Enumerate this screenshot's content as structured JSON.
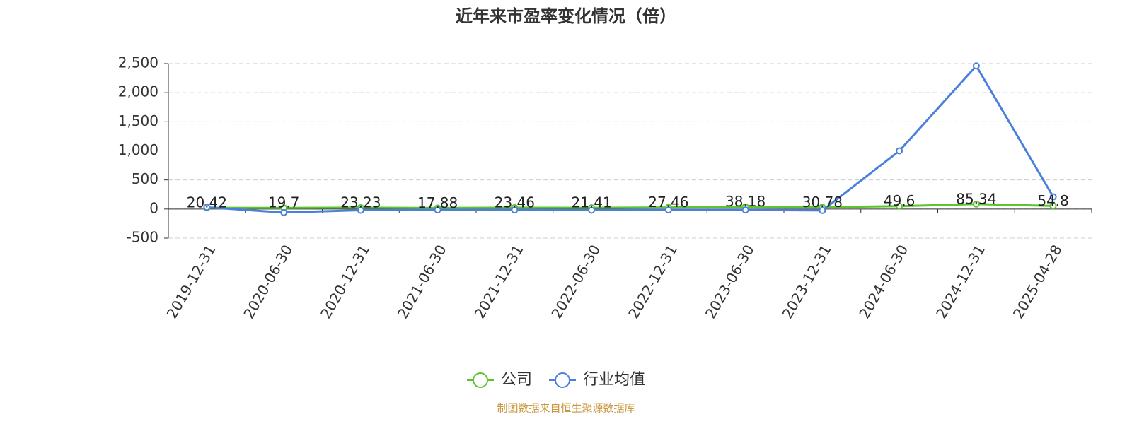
{
  "chart_data": {
    "type": "line",
    "title": "近年来市盈率变化情况（倍）",
    "categories": [
      "2019-12-31",
      "2020-06-30",
      "2020-12-31",
      "2021-06-30",
      "2021-12-31",
      "2022-06-30",
      "2022-12-31",
      "2023-06-30",
      "2023-12-31",
      "2024-06-30",
      "2024-12-31",
      "2025-04-28"
    ],
    "series": [
      {
        "name": "公司",
        "color": "#5cc42f",
        "values": [
          20.42,
          19.7,
          23.23,
          17.88,
          23.46,
          21.41,
          27.46,
          38.18,
          30.78,
          49.6,
          85.34,
          54.8
        ]
      },
      {
        "name": "行业均值",
        "color": "#4a80dc",
        "values": [
          30,
          -60,
          -20,
          -15,
          -15,
          -20,
          -15,
          -15,
          -25,
          1000,
          2460,
          210
        ]
      }
    ],
    "ylim": [
      -500,
      2500
    ],
    "yticks": [
      -500,
      0,
      500,
      {
        "value": 1000,
        "label": "1,000"
      },
      {
        "value": 1500,
        "label": "1,500"
      },
      {
        "value": 2000,
        "label": "2,000"
      },
      {
        "value": 2500,
        "label": "2,500"
      }
    ],
    "grid": true,
    "source": "制图数据来自恒生聚源数据库"
  }
}
